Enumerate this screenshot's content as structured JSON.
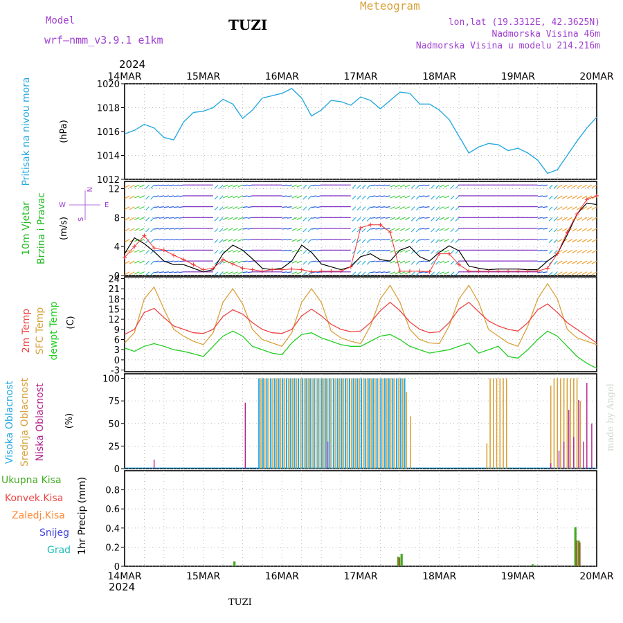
{
  "header": {
    "model_label": "Model",
    "model_name": "wrf—nmm_v3.9.1  e1km",
    "station": "TUZI",
    "meteogram": "Meteogram",
    "lonlat": "lon,lat (19.3312E, 42.3625N)",
    "elevation": "Nadmorska Visina 46m",
    "model_elevation": "Nadmorska Visina u modelu 214.216m",
    "year_top": "2024",
    "year_bottom": "2024",
    "footer_station": "TUZI",
    "credit": "made by Angel"
  },
  "colors": {
    "pressure": "#29a9e0",
    "temp2m": "#ee4444",
    "sfc_temp": "#d8a23c",
    "dewpt": "#22cc22",
    "high_cloud": "#29a9e0",
    "mid_cloud": "#d8a23c",
    "low_cloud": "#b0208a",
    "total_precip": "#44aa22",
    "conv_precip": "#ee4444",
    "frozen": "#ff8833",
    "snow": "#4444dd",
    "hail": "#22bbbb",
    "wind_label": "#22bb22",
    "legend_purple": "#a040d0"
  },
  "chart_data": [
    {
      "type": "line",
      "panel": "pressure",
      "ylabel_main": "Pritisak na nivou mora",
      "ylabel_unit": "(hPa)",
      "ylim": [
        1012,
        1020
      ],
      "yticks": [
        1012,
        1014,
        1016,
        1018,
        1020
      ],
      "grid": true,
      "x": [
        0,
        3,
        6,
        9,
        12,
        15,
        18,
        21,
        24,
        27,
        30,
        33,
        36,
        39,
        42,
        45,
        48,
        51,
        54,
        57,
        60,
        63,
        66,
        69,
        72,
        75,
        78,
        81,
        84,
        87,
        90,
        93,
        96,
        99,
        102,
        105,
        108,
        111,
        114,
        117,
        120,
        123,
        126,
        129,
        132,
        135,
        138,
        141,
        144
      ],
      "series": [
        {
          "values": [
            1015.8,
            1016.1,
            1016.6,
            1016.3,
            1015.5,
            1015.3,
            1016.8,
            1017.6,
            1017.7,
            1018.0,
            1018.7,
            1018.3,
            1017.1,
            1017.8,
            1018.8,
            1019.0,
            1019.2,
            1019.6,
            1018.8,
            1017.3,
            1017.8,
            1018.6,
            1018.5,
            1018.2,
            1018.9,
            1018.6,
            1017.9,
            1018.6,
            1019.3,
            1019.2,
            1018.3,
            1018.3,
            1017.8,
            1017.0,
            1015.6,
            1014.2,
            1014.7,
            1015.0,
            1014.9,
            1014.4,
            1014.6,
            1014.2,
            1013.6,
            1012.5,
            1012.8,
            1014.0,
            1015.2,
            1016.3,
            1017.2
          ]
        }
      ]
    },
    {
      "type": "line",
      "panel": "wind",
      "ylabel_main": "10m Vjetar",
      "ylabel_sub": "Brzina i Pravac",
      "ylabel_unit": "(m/s)",
      "compass": {
        "n": "N",
        "w": "W",
        "e": "E",
        "s": "S"
      },
      "ylim": [
        0,
        13
      ],
      "yticks": [
        0,
        4,
        8,
        12
      ],
      "grid": true,
      "x": [
        0,
        3,
        6,
        9,
        12,
        15,
        18,
        21,
        24,
        27,
        30,
        33,
        36,
        39,
        42,
        45,
        48,
        51,
        54,
        57,
        60,
        63,
        66,
        69,
        72,
        75,
        78,
        81,
        84,
        87,
        90,
        93,
        96,
        99,
        102,
        105,
        108,
        111,
        114,
        117,
        120,
        123,
        126,
        129,
        132,
        135,
        138,
        141,
        144
      ],
      "series": [
        {
          "name": "speed",
          "values": [
            3.0,
            5.2,
            4.4,
            3.3,
            2.0,
            1.5,
            1.5,
            1.0,
            0.5,
            0.8,
            3.0,
            4.2,
            3.5,
            2.3,
            1.0,
            0.8,
            1.0,
            2.0,
            4.2,
            3.2,
            1.6,
            1.2,
            0.8,
            1.2,
            2.6,
            3.0,
            2.2,
            2.0,
            3.5,
            4.0,
            2.6,
            2.0,
            3.2,
            4.1,
            3.4,
            1.3,
            1.0,
            0.8,
            0.9,
            0.9,
            0.9,
            0.8,
            0.8,
            2.0,
            3.0,
            5.6,
            8.5,
            10.0,
            9.8
          ]
        },
        {
          "name": "gust",
          "values": [
            2.5,
            4.0,
            5.5,
            3.8,
            3.5,
            2.8,
            2.2,
            1.5,
            0.8,
            1.0,
            2.2,
            1.6,
            1.0,
            0.8,
            0.6,
            0.8,
            0.8,
            0.9,
            0.8,
            0.5,
            0.6,
            0.6,
            0.6,
            1.2,
            6.6,
            7.0,
            7.0,
            6.0,
            0.6,
            0.6,
            0.6,
            0.5,
            3.0,
            3.0,
            1.5,
            0.6,
            0.6,
            0.6,
            0.6,
            0.6,
            0.6,
            0.6,
            0.6,
            1.0,
            3.0,
            6.0,
            8.5,
            10.5,
            11.0
          ]
        }
      ]
    },
    {
      "type": "line",
      "panel": "temperature",
      "ylabel_main": "2m Temp",
      "ylabel_sub": "SFC Temp",
      "ylabel_sub2": "dewpt Temp",
      "ylabel_unit": "(C)",
      "ylim": [
        -3.5,
        24.5
      ],
      "yticks": [
        -3,
        0,
        3,
        6,
        9,
        12,
        15,
        18,
        21,
        24
      ],
      "grid": true,
      "x": [
        0,
        3,
        6,
        9,
        12,
        15,
        18,
        21,
        24,
        27,
        30,
        33,
        36,
        39,
        42,
        45,
        48,
        51,
        54,
        57,
        60,
        63,
        66,
        69,
        72,
        75,
        78,
        81,
        84,
        87,
        90,
        93,
        96,
        99,
        102,
        105,
        108,
        111,
        114,
        117,
        120,
        123,
        126,
        129,
        132,
        135,
        138,
        141,
        144
      ],
      "series": [
        {
          "name": "2m",
          "values": [
            7.5,
            9.0,
            14.0,
            15.2,
            12.5,
            10.0,
            9.0,
            8.0,
            7.8,
            9.0,
            12.8,
            14.8,
            13.5,
            11.0,
            9.0,
            8.0,
            7.8,
            9.0,
            13.0,
            15.0,
            13.0,
            10.5,
            9.0,
            8.3,
            8.5,
            11.0,
            14.5,
            17.0,
            14.5,
            11.2,
            9.0,
            8.0,
            8.3,
            11.0,
            15.0,
            17.0,
            14.2,
            11.5,
            10.0,
            9.0,
            8.5,
            11.0,
            14.8,
            16.5,
            14.0,
            11.0,
            9.0,
            7.0,
            5.0
          ]
        },
        {
          "name": "sfc",
          "values": [
            5.0,
            8.0,
            18.0,
            21.5,
            15.0,
            9.0,
            7.0,
            5.5,
            4.5,
            8.0,
            17.0,
            21.0,
            16.5,
            9.0,
            6.0,
            5.0,
            4.0,
            8.0,
            17.0,
            21.0,
            17.0,
            8.5,
            6.5,
            5.5,
            4.8,
            10.0,
            18.0,
            22.0,
            17.0,
            9.0,
            6.0,
            5.0,
            4.8,
            10.0,
            18.0,
            22.0,
            17.0,
            9.0,
            7.0,
            5.0,
            4.0,
            10.0,
            18.0,
            22.5,
            18.0,
            9.0,
            6.5,
            5.5,
            4.5
          ]
        },
        {
          "name": "dewpt",
          "values": [
            3.5,
            2.5,
            4.0,
            4.8,
            4.0,
            3.0,
            2.5,
            1.8,
            1.0,
            4.0,
            7.0,
            8.5,
            7.0,
            4.0,
            3.0,
            2.0,
            1.5,
            5.0,
            7.5,
            8.0,
            6.5,
            5.5,
            4.5,
            4.0,
            4.0,
            5.5,
            7.0,
            7.5,
            6.0,
            4.0,
            3.0,
            2.0,
            2.5,
            3.0,
            4.0,
            5.0,
            2.0,
            3.0,
            4.0,
            1.0,
            0.5,
            3.0,
            6.0,
            8.5,
            7.0,
            4.0,
            1.0,
            -1.0,
            -2.5
          ]
        }
      ]
    },
    {
      "type": "bar",
      "panel": "clouds",
      "ylabel_main": "Visoka Oblacnost",
      "ylabel_sub": "Srednja Oblacnost",
      "ylabel_sub2": "Niska Oblacnost",
      "ylabel_unit": "(%)",
      "ylim": [
        0,
        105
      ],
      "yticks": [
        0,
        25,
        50,
        75,
        100
      ],
      "grid": true,
      "high_bars": {
        "x": [
          41.0,
          42.2,
          43.4,
          44.6,
          45.8,
          47.0,
          48.2,
          49.4,
          50.6,
          51.8,
          53.0,
          54.2,
          55.4,
          56.6,
          57.8,
          59.0,
          60.2,
          61.4,
          62.6,
          63.8,
          65.0,
          66.2,
          67.4,
          68.6,
          69.8,
          71.0,
          72.2,
          73.4,
          74.6,
          75.8,
          77.0,
          78.2,
          79.4,
          80.6,
          81.8,
          83.0,
          84.2,
          85.4
        ],
        "values": 100
      },
      "mid_bars": {
        "x": [
          41.6,
          42.8,
          44.0,
          45.2,
          46.4,
          47.6,
          48.8,
          50.0,
          51.2,
          52.4,
          53.6,
          54.8,
          56.0,
          57.2,
          58.4,
          59.6,
          60.8,
          62.0,
          63.2,
          64.4,
          65.6,
          66.8,
          68.0,
          69.2,
          70.4,
          71.6,
          72.8,
          74.0,
          75.2,
          76.4,
          77.6,
          78.8,
          80.0,
          81.2,
          82.4,
          83.6,
          84.8,
          86.0,
          87.2
        ],
        "values": [
          100,
          100,
          100,
          100,
          100,
          100,
          100,
          100,
          100,
          100,
          100,
          100,
          100,
          100,
          100,
          100,
          100,
          100,
          100,
          100,
          100,
          100,
          100,
          100,
          100,
          100,
          100,
          100,
          100,
          100,
          100,
          100,
          100,
          100,
          100,
          100,
          100,
          85,
          58
        ]
      },
      "mid_bars_late": {
        "x": [
          110.5,
          111.5,
          112.5,
          113.5,
          114.5,
          115.5,
          116.5,
          130.0,
          131.0,
          132.0,
          133.0,
          134.0,
          135.0,
          136.0,
          137.0,
          138.0,
          139.0
        ],
        "values": [
          28,
          100,
          100,
          100,
          100,
          100,
          100,
          92,
          100,
          100,
          100,
          100,
          100,
          100,
          100,
          100,
          75
        ]
      },
      "low_bars": {
        "x": [
          9.0,
          36.8,
          62.0,
          130.0,
          132.5,
          134.0,
          135.5,
          137.0,
          138.5,
          140.0,
          141.0,
          142.5
        ],
        "values": [
          10,
          73,
          30,
          6,
          20,
          30,
          65,
          35,
          76,
          30,
          95,
          50
        ]
      }
    },
    {
      "type": "bar",
      "panel": "precip",
      "ylabel_main": "1hr Precip",
      "ylabel_unit": "(mm)",
      "legend": [
        "Ukupna  Kisa",
        "Konvek.Kisa",
        "Zaledj.Kisa",
        "Snijeg",
        "Grad"
      ],
      "ylim": [
        0,
        1.0
      ],
      "yticks": [
        0,
        0.2,
        0.4,
        0.6,
        0.8
      ],
      "grid": true,
      "total": {
        "x": [
          33.5,
          83.5,
          84.5,
          124.5,
          137.5,
          138.5
        ],
        "values": [
          0.05,
          0.1,
          0.13,
          0.02,
          0.41,
          0.27
        ]
      },
      "convective": {
        "x": [
          83.5,
          137.5,
          138.5
        ],
        "values": [
          0.09,
          0.27,
          0.25
        ]
      }
    }
  ],
  "time_axis": {
    "labels": [
      "14MAR",
      "15MAR",
      "16MAR",
      "17MAR",
      "18MAR",
      "19MAR",
      "20MAR"
    ],
    "range_hours": [
      0,
      144
    ]
  }
}
